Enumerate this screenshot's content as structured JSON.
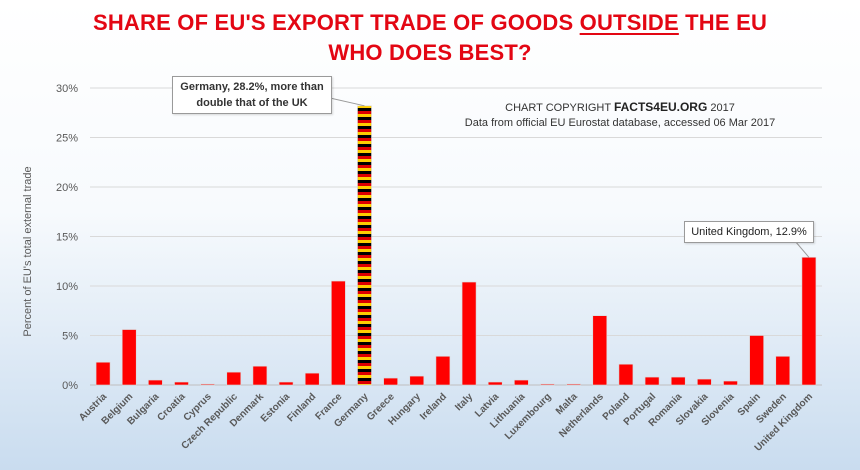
{
  "header": {
    "title_line1_part1": "SHARE OF EU'S EXPORT TRADE OF GOODS ",
    "title_line1_emph": "OUTSIDE",
    "title_line1_part2": " THE EU",
    "title_line2": "WHO DOES BEST?"
  },
  "notes": {
    "copyright_prefix": "CHART COPYRIGHT ",
    "copyright_brand": "FACTS4EU.ORG",
    "copyright_year": " 2017",
    "source": "Data from official EU Eurostat database, accessed 06 Mar 2017"
  },
  "annotations": {
    "germany": "Germany, 28.2%, more than double that of the UK",
    "uk": "United Kingdom, 12.9%"
  },
  "colors": {
    "bar": "#ff0000",
    "bar_outline": "#d9d9d9",
    "flag_black": "#000000",
    "flag_red": "#dd0000",
    "flag_gold": "#ffce00",
    "grid": "#d9d9d9",
    "title": "#e30613"
  },
  "chart_data": {
    "type": "bar",
    "ylabel": "Percent of EU's total external trade",
    "xlabel": "",
    "ylim": [
      0,
      30
    ],
    "yticks": [
      0,
      5,
      10,
      15,
      20,
      25,
      30
    ],
    "ytick_labels": [
      "0%",
      "5%",
      "10%",
      "15%",
      "20%",
      "25%",
      "30%"
    ],
    "grid": true,
    "categories": [
      "Austria",
      "Belgium",
      "Bulgaria",
      "Croatia",
      "Cyprus",
      "Czech Republic",
      "Denmark",
      "Estonia",
      "Finland",
      "France",
      "Germany",
      "Greece",
      "Hungary",
      "Ireland",
      "Italy",
      "Latvia",
      "Lithuania",
      "Luxembourg",
      "Malta",
      "Netherlands",
      "Poland",
      "Portugal",
      "Romania",
      "Slovakia",
      "Slovenia",
      "Spain",
      "Sweden",
      "United Kingdom"
    ],
    "values": [
      2.3,
      5.6,
      0.5,
      0.3,
      0.1,
      1.3,
      1.9,
      0.3,
      1.2,
      10.5,
      28.2,
      0.7,
      0.9,
      2.9,
      10.4,
      0.3,
      0.5,
      0.1,
      0.1,
      7.0,
      2.1,
      0.8,
      0.8,
      0.6,
      0.4,
      5.0,
      2.9,
      12.9
    ],
    "highlight": "Germany"
  }
}
